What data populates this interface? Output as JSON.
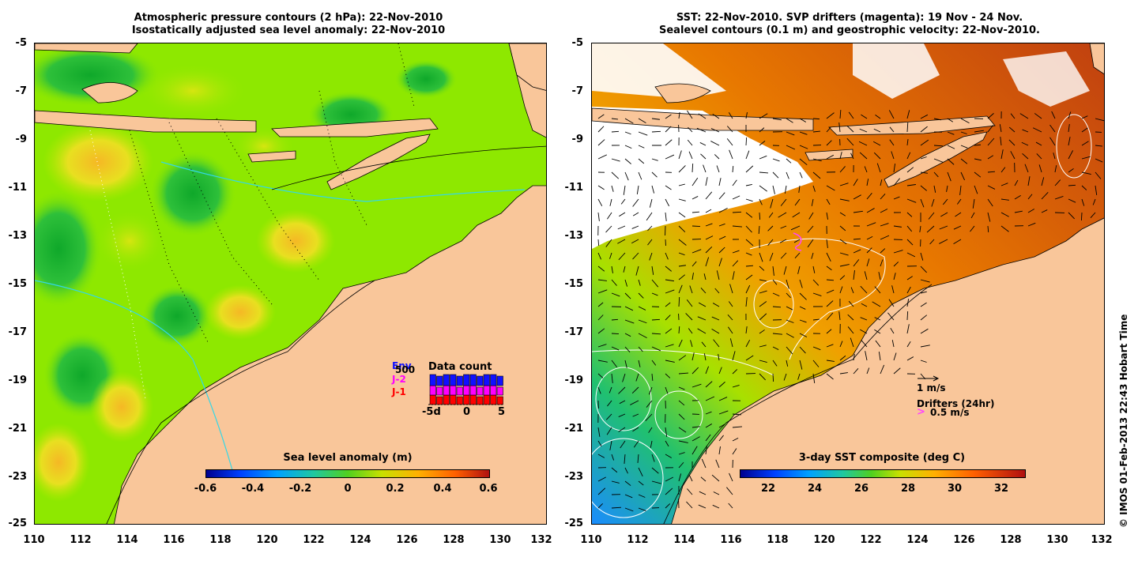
{
  "left_panel": {
    "title_line1": "Atmospheric pressure contours (2 hPa): 22-Nov-2010",
    "title_line2": "Isostatically adjusted sea level anomaly: 22-Nov-2010",
    "y_ticks": [
      "-5",
      "-7",
      "-9",
      "-11",
      "-13",
      "-15",
      "-17",
      "-19",
      "-21",
      "-23",
      "-25"
    ],
    "x_ticks": [
      "110",
      "112",
      "114",
      "116",
      "118",
      "120",
      "122",
      "124",
      "126",
      "128",
      "130",
      "132"
    ],
    "colorbar": {
      "title": "Sea level anomaly (m)",
      "ticks": [
        "-0.6",
        "-0.4",
        "-0.2",
        "0",
        "0.2",
        "0.4",
        "0.6"
      ]
    },
    "data_count": {
      "title": "Data count",
      "legend": [
        "Env",
        "J-2",
        "J-1"
      ],
      "legend_colors": [
        "#1010ff",
        "#ff00ff",
        "#ff0000"
      ],
      "count_label": "500",
      "axis_labels": [
        "-5d",
        "0",
        "5"
      ]
    }
  },
  "right_panel": {
    "title_line1": "SST: 22-Nov-2010. SVP drifters (magenta): 19 Nov - 24 Nov.",
    "title_line2": "Sealevel contours (0.1 m) and geostrophic velocity: 22-Nov-2010.",
    "y_ticks": [
      "-5",
      "-7",
      "-9",
      "-11",
      "-13",
      "-15",
      "-17",
      "-19",
      "-21",
      "-23",
      "-25"
    ],
    "x_ticks": [
      "110",
      "112",
      "114",
      "116",
      "118",
      "120",
      "122",
      "124",
      "126",
      "128",
      "130",
      "132"
    ],
    "colorbar": {
      "title": "3-day SST composite (deg C)",
      "ticks": [
        "22",
        "24",
        "26",
        "28",
        "30",
        "32"
      ]
    },
    "velocity_scale_label": "1 m/s",
    "drifters_label": "Drifters (24hr)",
    "drifter_scale_label": "0.5 m/s",
    "drifter_color": "#ff44ff"
  },
  "credit": "© IMOS 01-Feb-2013 22:43 Hobart Time",
  "colors": {
    "land": "#f9c69a",
    "ocean_sla": "#8ee800",
    "no_data": "#ffffff"
  }
}
